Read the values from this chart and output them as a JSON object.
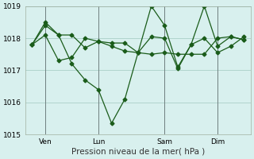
{
  "title": "",
  "xlabel": "Pression niveau de la mer( hPa )",
  "ylabel": "",
  "background_color": "#d8f0ee",
  "grid_color": "#a0c8c0",
  "line_color": "#1a5c1a",
  "ylim": [
    1015,
    1019
  ],
  "yticks": [
    1015,
    1016,
    1017,
    1018,
    1019
  ],
  "x_tick_labels": [
    "Ven",
    "Lun",
    "Sam",
    "Dim"
  ],
  "x_tick_positions": [
    1,
    5,
    10,
    14
  ],
  "vline_positions": [
    1,
    5,
    10,
    14
  ],
  "series": [
    [
      1017.8,
      1018.4,
      1018.1,
      1018.1,
      1017.7,
      1017.9,
      1017.75,
      1017.6,
      1017.55,
      1017.5,
      1017.55,
      1017.5,
      1017.5,
      1017.5,
      1018.0,
      1018.05,
      1017.95
    ],
    [
      1017.8,
      1018.5,
      1018.1,
      1017.2,
      1016.7,
      1016.4,
      1015.35,
      1016.1,
      1017.55,
      1019.0,
      1018.4,
      1017.1,
      1017.8,
      1019.0,
      1017.75,
      1018.05,
      1017.95
    ],
    [
      1017.8,
      1018.1,
      1017.3,
      1017.4,
      1018.0,
      1017.9,
      1017.85,
      1017.85,
      1017.55,
      1018.05,
      1018.0,
      1017.05,
      1017.8,
      1018.0,
      1017.55,
      1017.75,
      1018.05
    ]
  ]
}
